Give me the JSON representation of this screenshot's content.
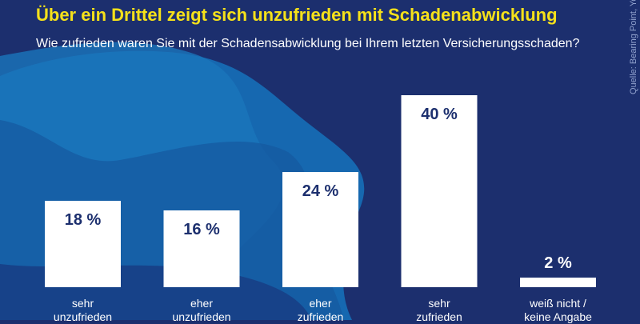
{
  "title": "Über ein Drittel zeigt sich unzufrieden mit Schadenabwicklung",
  "subtitle": "Wie zufrieden waren Sie mit der Schadensabwicklung bei Ihrem letzten Versicherungsschaden?",
  "source": "Quelle: Bearing Point, YouGov",
  "colors": {
    "background": "#1c2f6e",
    "title": "#f5e11a",
    "bar": "#ffffff",
    "value_label": "#1c2f6e"
  },
  "chart_data": {
    "type": "bar",
    "title": "Über ein Drittel zeigt sich unzufrieden mit Schadenabwicklung",
    "subtitle": "Wie zufrieden waren Sie mit der Schadensabwicklung bei Ihrem letzten Versicherungsschaden?",
    "categories": [
      [
        "sehr",
        "unzufrieden"
      ],
      [
        "eher",
        "unzufrieden"
      ],
      [
        "eher",
        "zufrieden"
      ],
      [
        "sehr",
        "zufrieden"
      ],
      [
        "weiß nicht /",
        "keine Angabe"
      ]
    ],
    "values": [
      18,
      16,
      24,
      40,
      2
    ],
    "value_labels": [
      "18 %",
      "16 %",
      "24 %",
      "40 %",
      "2 %"
    ],
    "unit": "%",
    "xlabel": "",
    "ylabel": "",
    "ylim": [
      0,
      40
    ],
    "grid": false
  }
}
